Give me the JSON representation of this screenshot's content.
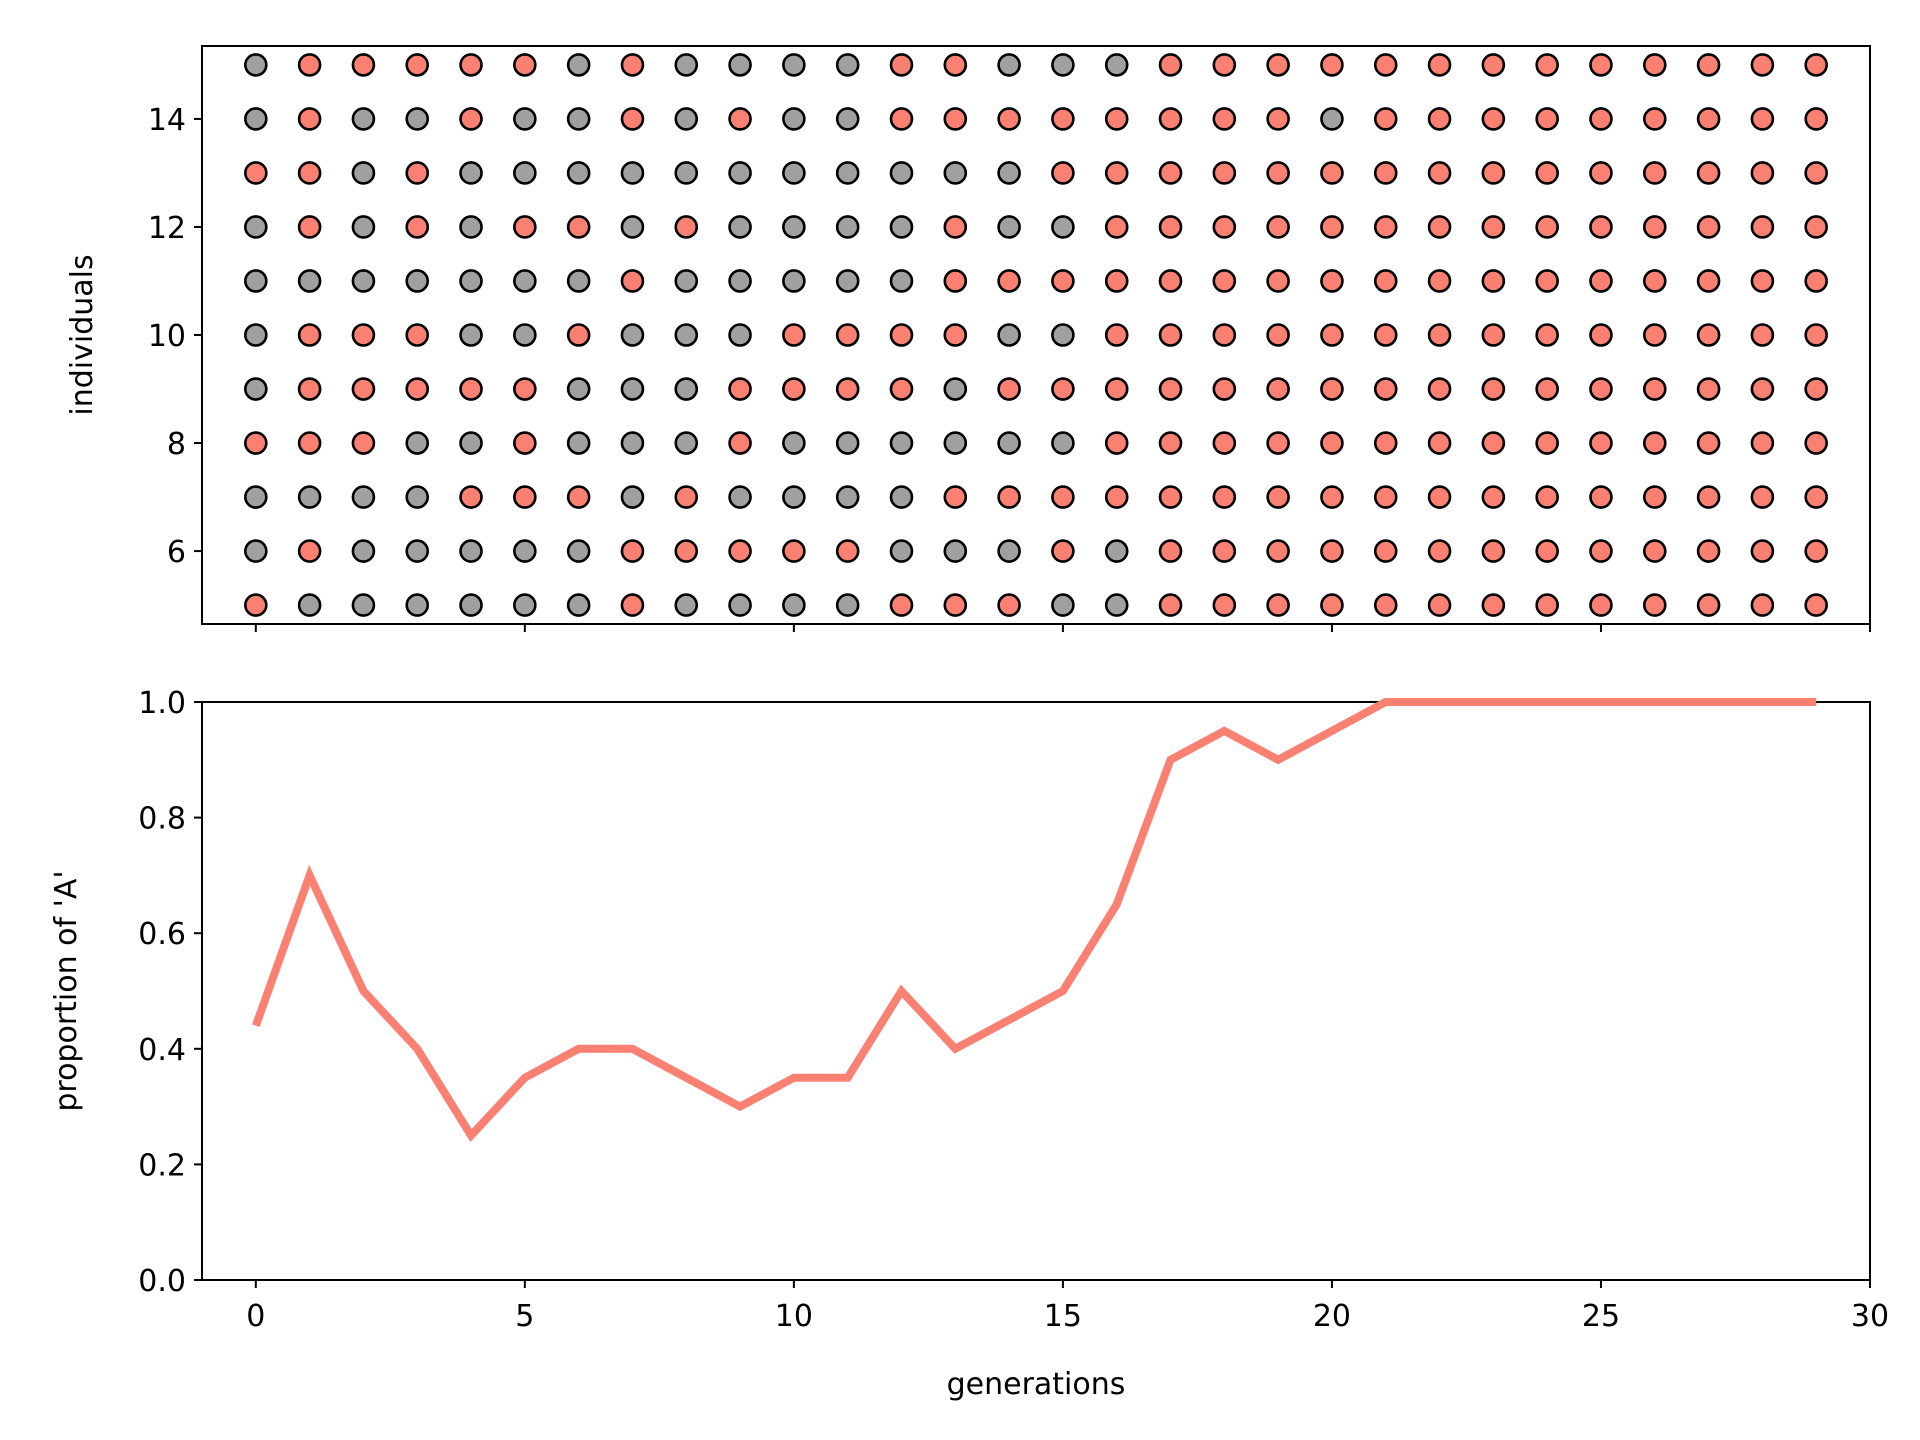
{
  "chart_data": [
    {
      "type": "scatter",
      "xlabel": "",
      "ylabel": "individuals",
      "xlim": [
        -1,
        30
      ],
      "ylim": [
        4.65,
        15.35
      ],
      "yticks": [
        "6",
        "8",
        "10",
        "12",
        "14"
      ],
      "ytick_values": [
        6,
        8,
        10,
        12,
        14
      ],
      "xticks_unlabeled": [
        0,
        5,
        10,
        15,
        20,
        25,
        30
      ],
      "grid": false,
      "colors": {
        "A": "#fa8072",
        "B": "#a0a0a0",
        "edge": "#000000"
      },
      "generations": [
        0,
        1,
        2,
        3,
        4,
        5,
        6,
        7,
        8,
        9,
        10,
        11,
        12,
        13,
        14,
        15,
        16,
        17,
        18,
        19,
        20,
        21,
        22,
        23,
        24,
        25,
        26,
        27,
        28,
        29
      ],
      "individuals": [
        5,
        6,
        7,
        8,
        9,
        10,
        11,
        12,
        13,
        14,
        15
      ],
      "rows": {
        "15": "BAAAAABABBBBAABBBAAAAAAAAAAAAA",
        "14": "BABBABBABABBAAAAAAAABAAAAAAAAA",
        "13": "AABABBBBBBBBBBBAAAAAAAAAAAAAAA",
        "12": "BABABAABABBBBABBAAAAAAAAAAAAAA",
        "11": "BBBBBBBABBBBBAAAAAAAAAAAAAAAAA",
        "10": "BAAABBABBBAAAABBAAAAAAAAAAAAAA",
        "9": "BAAAAABBBAAAABAAAAAAAAAAAAAAAA",
        "8": "AAABBABBBABBBBBBAAAAAAAAAAAAAA",
        "7": "BBBBAAABABBBBAAAAAAAAAAAAAAAAA",
        "6": "BABBBBBAAAAABBBABAAAAAAAAAAAAA",
        "5": "ABBBBBBABBBBAAABBAAAAAAAAAAAAA"
      }
    },
    {
      "type": "line",
      "xlabel": "generations",
      "ylabel": "proportion of 'A'",
      "xlim": [
        -1,
        30
      ],
      "ylim": [
        0.0,
        1.0
      ],
      "xticks": [
        "0",
        "5",
        "10",
        "15",
        "20",
        "25",
        "30"
      ],
      "xtick_values": [
        0,
        5,
        10,
        15,
        20,
        25,
        30
      ],
      "yticks": [
        "0.0",
        "0.2",
        "0.4",
        "0.6",
        "0.8",
        "1.0"
      ],
      "ytick_values": [
        0.0,
        0.2,
        0.4,
        0.6,
        0.8,
        1.0
      ],
      "grid": false,
      "color": "#fa8072",
      "x": [
        0,
        1,
        2,
        3,
        4,
        5,
        6,
        7,
        8,
        9,
        10,
        11,
        12,
        13,
        14,
        15,
        16,
        17,
        18,
        19,
        20,
        21,
        22,
        23,
        24,
        25,
        26,
        27,
        28,
        29
      ],
      "y": [
        0.44,
        0.7,
        0.5,
        0.4,
        0.25,
        0.35,
        0.4,
        0.4,
        0.35,
        0.3,
        0.35,
        0.35,
        0.5,
        0.4,
        0.45,
        0.5,
        0.65,
        0.9,
        0.95,
        0.9,
        0.95,
        1.0,
        1.0,
        1.0,
        1.0,
        1.0,
        1.0,
        1.0,
        1.0,
        1.0
      ]
    }
  ]
}
